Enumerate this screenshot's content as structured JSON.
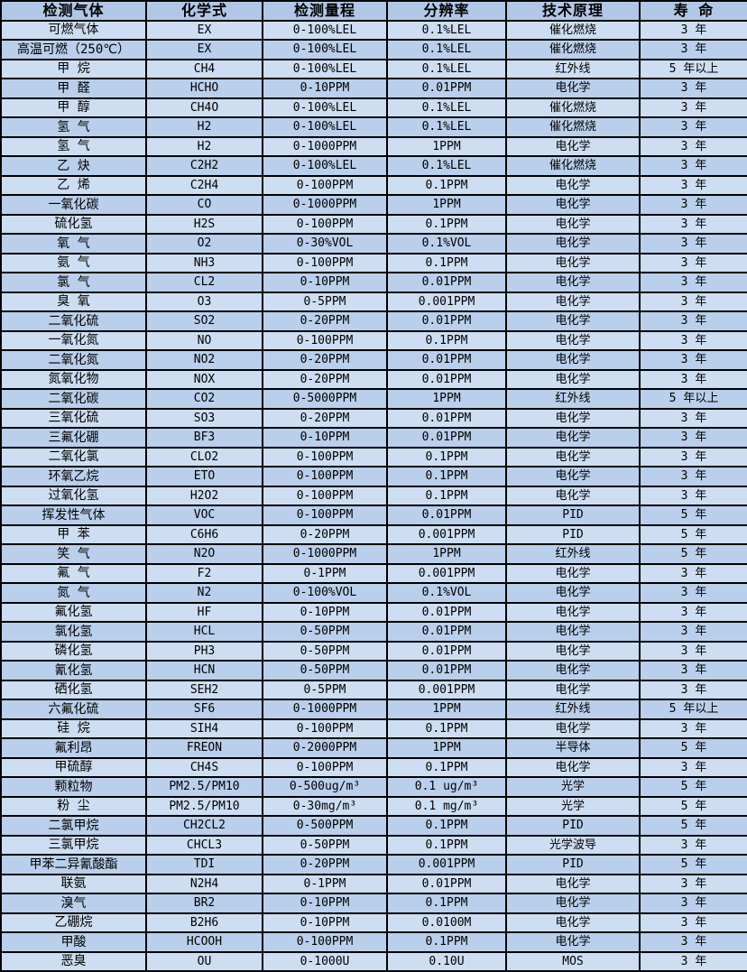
{
  "colors": {
    "header_bg": "#b1c7e6",
    "row_light_bg": "#cddef2",
    "row_dark_bg": "#b9cfeb",
    "border": "#000000",
    "text": "#000000"
  },
  "table": {
    "columns": [
      "检测气体",
      "化学式",
      "检测量程",
      "分辨率",
      "技术原理",
      "寿 命"
    ],
    "rows": [
      [
        "可燃气体",
        "EX",
        "0-100%LEL",
        "0.1%LEL",
        "催化燃烧",
        "3 年"
      ],
      [
        "高温可燃（250℃）",
        "EX",
        "0-100%LEL",
        "0.1%LEL",
        "催化燃烧",
        "3 年"
      ],
      [
        "甲 烷",
        "CH4",
        "0-100%LEL",
        "0.1%LEL",
        "红外线",
        "5 年以上"
      ],
      [
        "甲 醛",
        "HCHO",
        "0-10PPM",
        "0.01PPM",
        "电化学",
        "3 年"
      ],
      [
        "甲 醇",
        "CH4O",
        "0-100%LEL",
        "0.1%LEL",
        "催化燃烧",
        "3 年"
      ],
      [
        "氢 气",
        "H2",
        "0-100%LEL",
        "0.1%LEL",
        "催化燃烧",
        "3 年"
      ],
      [
        "氢 气",
        "H2",
        "0-1000PPM",
        "1PPM",
        "电化学",
        "3 年"
      ],
      [
        "乙 炔",
        "C2H2",
        "0-100%LEL",
        "0.1%LEL",
        "催化燃烧",
        "3 年"
      ],
      [
        "乙 烯",
        "C2H4",
        "0-100PPM",
        "0.1PPM",
        "电化学",
        "3 年"
      ],
      [
        "一氧化碳",
        "CO",
        "0-1000PPM",
        "1PPM",
        "电化学",
        "3 年"
      ],
      [
        "硫化氢",
        "H2S",
        "0-100PPM",
        "0.1PPM",
        "电化学",
        "3 年"
      ],
      [
        "氧 气",
        "O2",
        "0-30%VOL",
        "0.1%VOL",
        "电化学",
        "3 年"
      ],
      [
        "氨 气",
        "NH3",
        "0-100PPM",
        "0.1PPM",
        "电化学",
        "3 年"
      ],
      [
        "氯 气",
        "CL2",
        "0-10PPM",
        "0.01PPM",
        "电化学",
        "3 年"
      ],
      [
        "臭 氧",
        "O3",
        "0-5PPM",
        "0.001PPM",
        "电化学",
        "3 年"
      ],
      [
        "二氧化硫",
        "SO2",
        "0-20PPM",
        "0.01PPM",
        "电化学",
        "3 年"
      ],
      [
        "一氧化氮",
        "NO",
        "0-100PPM",
        "0.1PPM",
        "电化学",
        "3 年"
      ],
      [
        "二氧化氮",
        "NO2",
        "0-20PPM",
        "0.01PPM",
        "电化学",
        "3 年"
      ],
      [
        "氮氧化物",
        "NOX",
        "0-20PPM",
        "0.01PPM",
        "电化学",
        "3 年"
      ],
      [
        "二氧化碳",
        "CO2",
        "0-5000PPM",
        "1PPM",
        "红外线",
        "5 年以上"
      ],
      [
        "三氧化硫",
        "SO3",
        "0-20PPM",
        "0.01PPM",
        "电化学",
        "3 年"
      ],
      [
        "三氟化硼",
        "BF3",
        "0-10PPM",
        "0.01PPM",
        "电化学",
        "3 年"
      ],
      [
        "二氧化氯",
        "CLO2",
        "0-100PPM",
        "0.1PPM",
        "电化学",
        "3 年"
      ],
      [
        "环氧乙烷",
        "ETO",
        "0-100PPM",
        "0.1PPM",
        "电化学",
        "3 年"
      ],
      [
        "过氧化氢",
        "H2O2",
        "0-100PPM",
        "0.1PPM",
        "电化学",
        "3 年"
      ],
      [
        "挥发性气体",
        "VOC",
        "0-100PPM",
        "0.01PPM",
        "PID",
        "5 年"
      ],
      [
        "甲 苯",
        "C6H6",
        "0-20PPM",
        "0.001PPM",
        "PID",
        "5 年"
      ],
      [
        "笑 气",
        "N2O",
        "0-1000PPM",
        "1PPM",
        "红外线",
        "5 年"
      ],
      [
        "氟 气",
        "F2",
        "0-1PPM",
        "0.001PPM",
        "电化学",
        "3 年"
      ],
      [
        "氮 气",
        "N2",
        "0-100%VOL",
        "0.1%VOL",
        "电化学",
        "3 年"
      ],
      [
        "氟化氢",
        "HF",
        "0-10PPM",
        "0.01PPM",
        "电化学",
        "3 年"
      ],
      [
        "氯化氢",
        "HCL",
        "0-50PPM",
        "0.01PPM",
        "电化学",
        "3 年"
      ],
      [
        "磷化氢",
        "PH3",
        "0-50PPM",
        "0.01PPM",
        "电化学",
        "3 年"
      ],
      [
        "氰化氢",
        "HCN",
        "0-50PPM",
        "0.01PPM",
        "电化学",
        "3 年"
      ],
      [
        "硒化氢",
        "SEH2",
        "0-5PPM",
        "0.001PPM",
        "电化学",
        "3 年"
      ],
      [
        "六氟化硫",
        "SF6",
        "0-1000PPM",
        "1PPM",
        "红外线",
        "5 年以上"
      ],
      [
        "硅 烷",
        "SIH4",
        "0-100PPM",
        "0.1PPM",
        "电化学",
        "3 年"
      ],
      [
        "氟利昂",
        "FREON",
        "0-2000PPM",
        "1PPM",
        "半导体",
        "5 年"
      ],
      [
        "甲硫醇",
        "CH4S",
        "0-100PPM",
        "0.1PPM",
        "电化学",
        "3 年"
      ],
      [
        "颗粒物",
        "PM2.5/PM10",
        "0-500ug/m³",
        "0.1 ug/m³",
        "光学",
        "5 年"
      ],
      [
        "粉 尘",
        "PM2.5/PM10",
        "0-30mg/m³",
        "0.1 mg/m³",
        "光学",
        "5 年"
      ],
      [
        "二氯甲烷",
        "CH2CL2",
        "0-500PPM",
        "0.1PPM",
        "PID",
        "5 年"
      ],
      [
        "三氯甲烷",
        "CHCL3",
        "0-50PPM",
        "0.1PPM",
        "光学波导",
        "3 年"
      ],
      [
        "甲苯二异氰酸酯",
        "TDI",
        "0-20PPM",
        "0.001PPM",
        "PID",
        "5 年"
      ],
      [
        "联氨",
        "N2H4",
        "0-1PPM",
        "0.01PPM",
        "电化学",
        "3 年"
      ],
      [
        "溴气",
        "BR2",
        "0-10PPM",
        "0.1PPM",
        "电化学",
        "3 年"
      ],
      [
        "乙硼烷",
        "B2H6",
        "0-10PPM",
        "0.0100M",
        "电化学",
        "3 年"
      ],
      [
        "甲酸",
        "HCOOH",
        "0-100PPM",
        "0.1PPM",
        "电化学",
        "3 年"
      ],
      [
        "恶臭",
        "OU",
        "0-1000U",
        "0.10U",
        "MOS",
        "3 年"
      ]
    ]
  }
}
